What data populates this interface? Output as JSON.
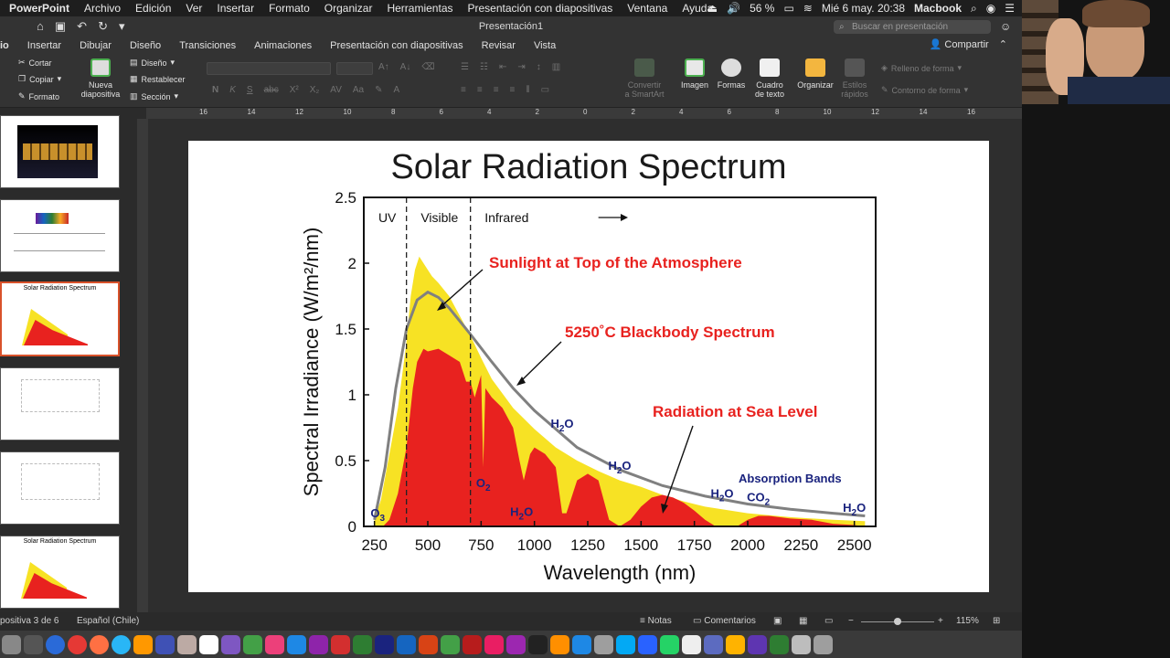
{
  "menubar": {
    "app": "PowerPoint",
    "items": [
      "Archivo",
      "Edición",
      "Ver",
      "Insertar",
      "Formato",
      "Organizar",
      "Herramientas",
      "Presentación con diapositivas",
      "Ventana",
      "Ayuda"
    ],
    "battery": "56 %",
    "datetime": "Mié 6 may.  20:38",
    "user": "Macbook"
  },
  "titlebar": {
    "document": "Presentación1"
  },
  "search": {
    "placeholder": "Buscar en presentación"
  },
  "tabs": {
    "items": [
      "io",
      "Insertar",
      "Dibujar",
      "Diseño",
      "Transiciones",
      "Animaciones",
      "Presentación con diapositivas",
      "Revisar",
      "Vista"
    ],
    "share": "Compartir"
  },
  "ribbon": {
    "cut": "Cortar",
    "copy": "Copiar",
    "format": "Formato",
    "new_slide_1": "Nueva",
    "new_slide_2": "diapositiva",
    "design": "Diseño",
    "reset": "Restablecer",
    "section": "Sección",
    "convert_1": "Convertir",
    "convert_2": "a SmartArt",
    "image": "Imagen",
    "shapes": "Formas",
    "textbox_1": "Cuadro",
    "textbox_2": "de texto",
    "arrange": "Organizar",
    "quick_styles_1": "Estilos",
    "quick_styles_2": "rápidos",
    "shape_fill": "Relleno de forma",
    "shape_outline": "Contorno de forma",
    "fmt_buttons": [
      "N",
      "K",
      "S",
      "abc",
      "X²",
      "X₂",
      "AV",
      "Aa"
    ]
  },
  "ruler": {
    "labels": [
      "16",
      "14",
      "12",
      "10",
      "8",
      "6",
      "4",
      "2",
      "0",
      "2",
      "4",
      "6",
      "8",
      "10",
      "12",
      "14",
      "16"
    ]
  },
  "thumbnails": [
    {
      "num": "",
      "title": ""
    },
    {
      "num": "",
      "title": ""
    },
    {
      "num": "",
      "title": "Solar Radiation Spectrum"
    },
    {
      "num": "",
      "title": ""
    },
    {
      "num": "",
      "title": ""
    },
    {
      "num": "",
      "title": "Solar Radiation Spectrum"
    }
  ],
  "slide": {
    "title": "Solar Radiation Spectrum"
  },
  "chart_data": {
    "type": "area",
    "title": "Solar Radiation Spectrum",
    "xlabel": "Wavelength (nm)",
    "ylabel": "Spectral Irradiance (W/m²/nm)",
    "xlim": [
      200,
      2600
    ],
    "ylim": [
      0,
      2.5
    ],
    "xticks": [
      "250",
      "500",
      "750",
      "1000",
      "1250",
      "1500",
      "1750",
      "2000",
      "2250",
      "2500"
    ],
    "yticks": [
      "0",
      "0.5",
      "1",
      "1.5",
      "2",
      "2.5"
    ],
    "regions": [
      "UV",
      "Visible",
      "Infrared"
    ],
    "region_bounds": [
      400,
      700
    ],
    "colors": {
      "top": "#f7e224",
      "sea": "#e8221f",
      "blackbody": "#808080",
      "label_red": "#e8221f",
      "label_blue": "#1a237e"
    },
    "annotations": {
      "top": "Sunlight at Top of the Atmosphere",
      "blackbody": "5250˚C Blackbody Spectrum",
      "sea": "Radiation at Sea Level",
      "bands": "Absorption Bands"
    },
    "absorption_labels": [
      {
        "label": "O3",
        "x": 265,
        "y": 0.07
      },
      {
        "label": "O2",
        "x": 760,
        "y": 0.3
      },
      {
        "label": "H2O",
        "x": 940,
        "y": 0.08
      },
      {
        "label": "H2O",
        "x": 1130,
        "y": 0.75
      },
      {
        "label": "H2O",
        "x": 1400,
        "y": 0.43
      },
      {
        "label": "H2O",
        "x": 1880,
        "y": 0.22
      },
      {
        "label": "CO2",
        "x": 2050,
        "y": 0.19
      },
      {
        "label": "H2O",
        "x": 2500,
        "y": 0.11
      }
    ],
    "series": [
      {
        "name": "Sunlight at Top of the Atmosphere",
        "x": [
          250,
          280,
          320,
          360,
          400,
          420,
          440,
          460,
          480,
          500,
          520,
          550,
          600,
          650,
          700,
          750,
          800,
          900,
          1000,
          1100,
          1200,
          1300,
          1400,
          1500,
          1600,
          1700,
          1800,
          2000,
          2200,
          2400,
          2550
        ],
        "y": [
          0.06,
          0.2,
          0.55,
          0.9,
          1.4,
          1.75,
          1.95,
          2.05,
          2.0,
          1.95,
          1.9,
          1.85,
          1.75,
          1.6,
          1.45,
          1.28,
          1.12,
          0.9,
          0.74,
          0.6,
          0.5,
          0.42,
          0.35,
          0.3,
          0.24,
          0.19,
          0.15,
          0.1,
          0.07,
          0.05,
          0.04
        ]
      },
      {
        "name": "Radiation at Sea Level",
        "x": [
          290,
          320,
          360,
          400,
          430,
          450,
          480,
          500,
          550,
          600,
          650,
          680,
          700,
          720,
          750,
          760,
          770,
          800,
          850,
          900,
          930,
          950,
          980,
          1000,
          1050,
          1100,
          1130,
          1150,
          1200,
          1250,
          1300,
          1350,
          1400,
          1450,
          1500,
          1550,
          1600,
          1650,
          1700,
          1750,
          1800,
          1850,
          1900,
          1950,
          2000,
          2050,
          2100,
          2200,
          2300,
          2400,
          2500,
          2550
        ],
        "y": [
          0,
          0.05,
          0.25,
          0.6,
          1.05,
          1.25,
          1.35,
          1.33,
          1.35,
          1.3,
          1.25,
          1.1,
          1.1,
          0.98,
          1.15,
          0.45,
          1.05,
          0.98,
          0.9,
          0.75,
          0.5,
          0.35,
          0.55,
          0.6,
          0.55,
          0.45,
          0.1,
          0.1,
          0.35,
          0.4,
          0.35,
          0.05,
          0.0,
          0.05,
          0.15,
          0.22,
          0.24,
          0.22,
          0.18,
          0.12,
          0.05,
          0.0,
          0.0,
          0.0,
          0.05,
          0.08,
          0.08,
          0.06,
          0.05,
          0.02,
          0.01,
          0.0
        ]
      },
      {
        "name": "5250˚C Blackbody Spectrum",
        "x": [
          250,
          300,
          350,
          400,
          450,
          500,
          550,
          600,
          700,
          800,
          900,
          1000,
          1200,
          1400,
          1600,
          1800,
          2000,
          2200,
          2400,
          2550
        ],
        "y": [
          0.05,
          0.45,
          1.05,
          1.5,
          1.72,
          1.78,
          1.74,
          1.66,
          1.46,
          1.25,
          1.05,
          0.88,
          0.6,
          0.43,
          0.31,
          0.23,
          0.17,
          0.13,
          0.1,
          0.08
        ]
      }
    ]
  },
  "statusbar": {
    "slide_info": "positiva 3 de 6",
    "language": "Español (Chile)",
    "notes": "Notas",
    "comments": "Comentarios",
    "zoom": "115%"
  }
}
